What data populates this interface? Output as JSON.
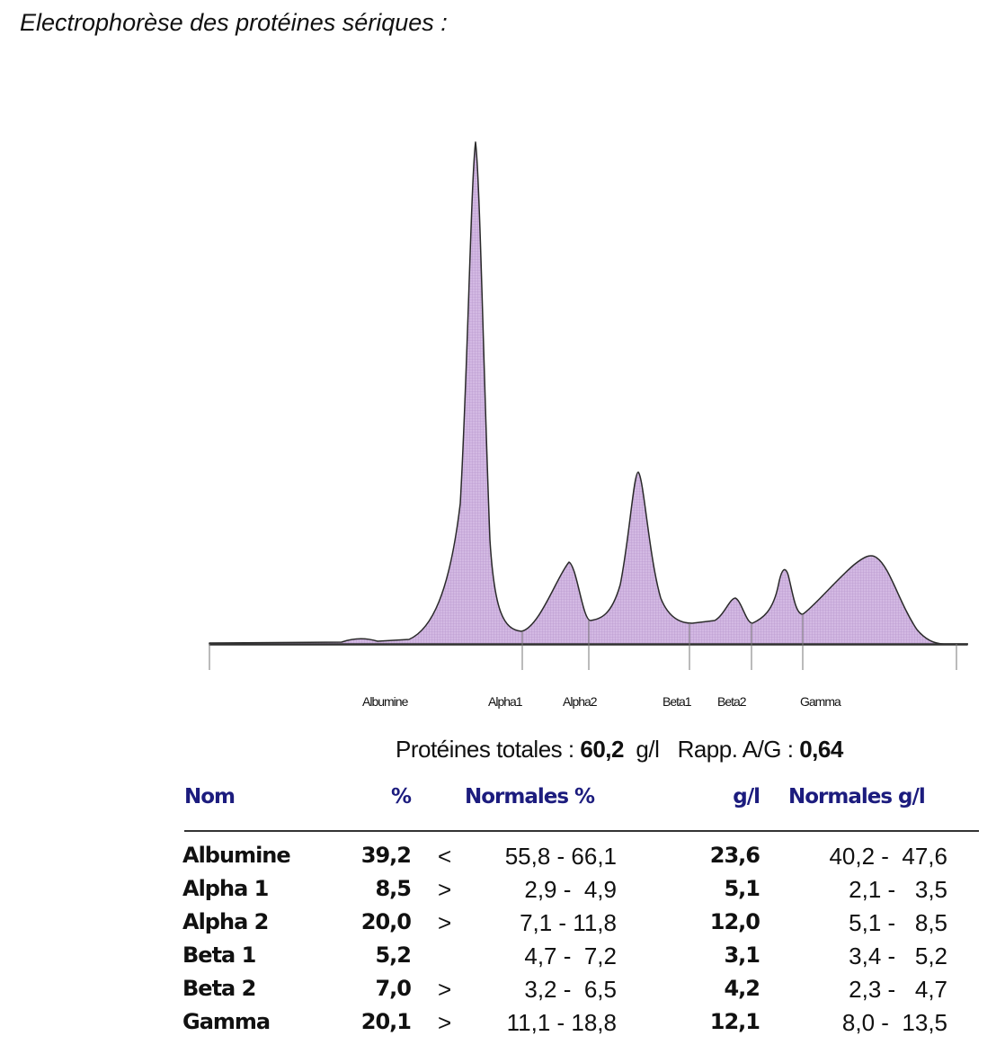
{
  "title": "Electrophorèse des protéines sériques :",
  "fractions_axis": [
    "Albumine",
    "Alpha1",
    "Alpha2",
    "Beta1",
    "Beta2",
    "Gamma"
  ],
  "colors": {
    "fill": "#cfb3e0",
    "header": "#1c1c7e"
  },
  "summary": {
    "total_label": "Protéines totales :",
    "total_value": "60,2",
    "total_unit": "g/l",
    "ratio_label": "Rapp. A/G :",
    "ratio_value": "0,64"
  },
  "table": {
    "headers": {
      "name": "Nom",
      "pct": "%",
      "normal_pct": "Normales %",
      "gl": "g/l",
      "normal_gl": "Normales g/l"
    },
    "rows": [
      {
        "name": "Albumine",
        "pct": "39,2",
        "flag": "<",
        "normal_pct": "55,8 - 66,1",
        "gl": "23,6",
        "normal_gl": "40,2 -  47,6"
      },
      {
        "name": "Alpha 1",
        "pct": "8,5",
        "flag": ">",
        "normal_pct": "2,9 -  4,9",
        "gl": "5,1",
        "normal_gl": "2,1 -   3,5"
      },
      {
        "name": "Alpha 2",
        "pct": "20,0",
        "flag": ">",
        "normal_pct": "7,1 - 11,8",
        "gl": "12,0",
        "normal_gl": "5,1 -   8,5"
      },
      {
        "name": "Beta 1",
        "pct": "5,2",
        "flag": "",
        "normal_pct": "4,7 -  7,2",
        "gl": "3,1",
        "normal_gl": "3,4 -   5,2"
      },
      {
        "name": "Beta 2",
        "pct": "7,0",
        "flag": ">",
        "normal_pct": "3,2 -  6,5",
        "gl": "4,2",
        "normal_gl": "2,3 -   4,7"
      },
      {
        "name": "Gamma",
        "pct": "20,1",
        "flag": ">",
        "normal_pct": "11,1 - 18,8",
        "gl": "12,1",
        "normal_gl": "8,0 -  13,5"
      }
    ]
  }
}
